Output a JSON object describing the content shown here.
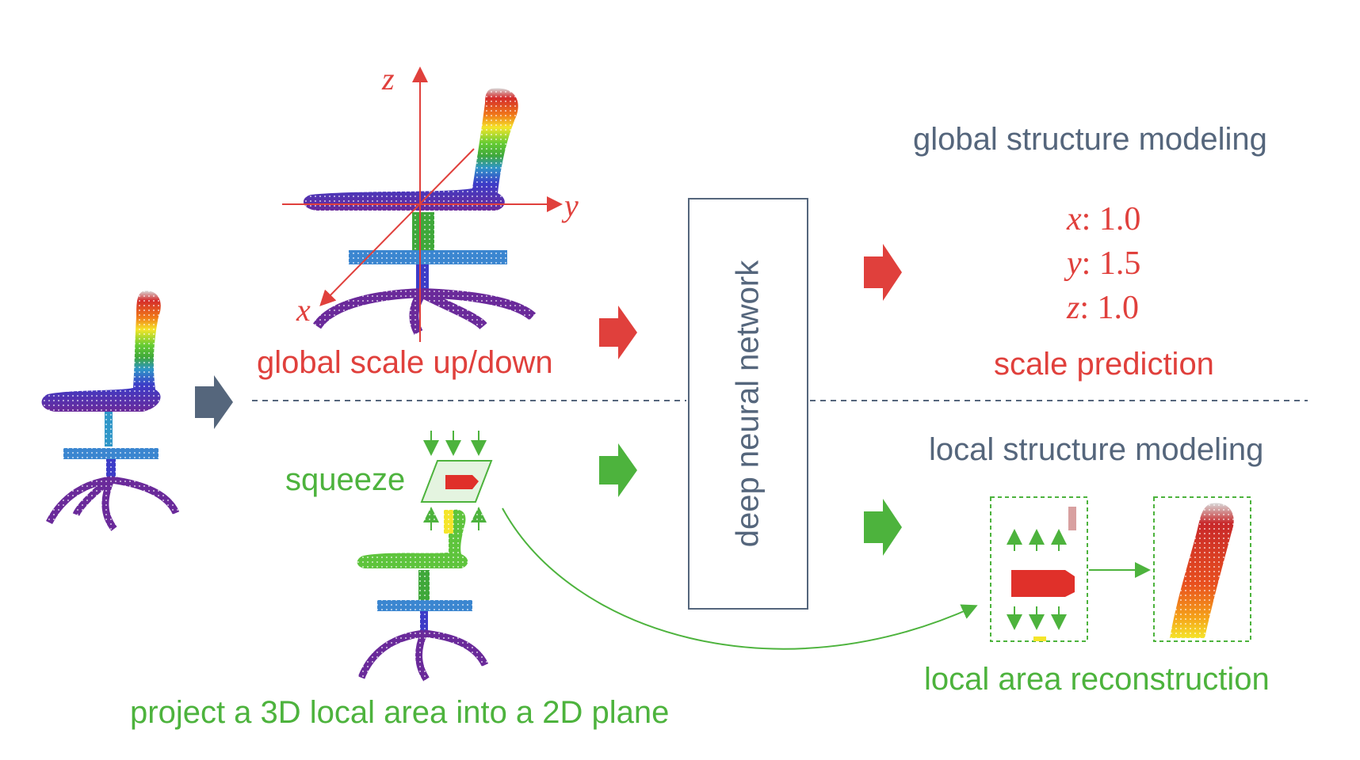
{
  "labels": {
    "global_scale": "global scale up/down",
    "squeeze": "squeeze",
    "project": "project a 3D local area into a 2D plane",
    "dnn": "deep neural network",
    "global_modeling": "global structure modeling",
    "local_modeling": "local structure modeling",
    "scale_prediction": "scale prediction",
    "local_reconstruction": "local area reconstruction"
  },
  "axes": {
    "z": "z",
    "y": "y",
    "x": "x"
  },
  "scale_values": [
    {
      "axis": "x",
      "value": ": 1.0"
    },
    {
      "axis": "y",
      "value": ": 1.5"
    },
    {
      "axis": "z",
      "value": ": 1.0"
    }
  ],
  "colors": {
    "red": "#e0403c",
    "green": "#4db33d",
    "slate": "#55667c"
  },
  "icons": [
    "chair-pointcloud-input",
    "chair-pointcloud-global",
    "chair-pointcloud-local",
    "arrow-right-icon",
    "squeeze-plane-icon",
    "backrest-patch-icon"
  ]
}
